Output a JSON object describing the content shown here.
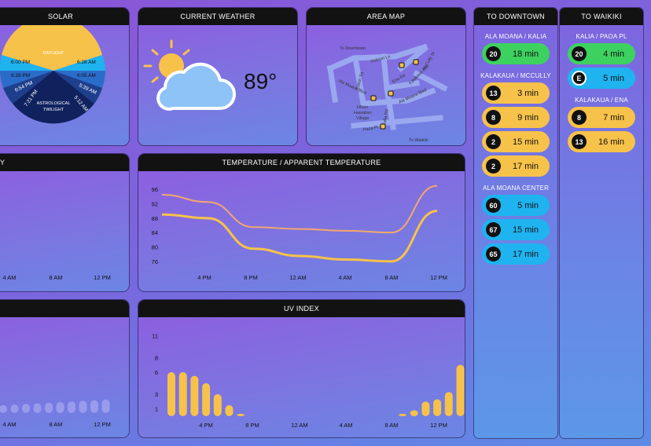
{
  "solar": {
    "title": "SOLAR",
    "daylight_label": "DAYLIGHT",
    "twilight_label_1": "ASTROLOGICAL",
    "twilight_label_2": "TWILIGHT",
    "left_times": [
      "6:00 PM",
      "6:28 PM",
      "6:54 PM",
      "7:21 PM"
    ],
    "right_times": [
      "6:28 AM",
      "6:05 AM",
      "5:39 AM",
      "5:12 AM"
    ]
  },
  "weather": {
    "title": "CURRENT WEATHER",
    "temperature": "89°",
    "icon": "partly-cloudy-icon"
  },
  "map": {
    "title": "AREA MAP",
    "labels": {
      "to_downtown": "To Downtown",
      "to_waikiki": "To Waikiki",
      "mccully": "McCully St",
      "hobron": "Hobron Ln",
      "eaton": "Eaton Sq",
      "ena": "Ena Rd",
      "kalakaua": "Kalakaua Ave",
      "ala_moana_blvd": "Ala Moana Blvd",
      "ala_moana_blvd_2": "Ala Moana Blvd",
      "kahanu": "Kalia Rd",
      "hilton_1": "Hilton",
      "hilton_2": "Hawaiian",
      "hilton_3": "Village",
      "paoa": "Paoa Pl"
    }
  },
  "humidity": {
    "title_partial": "Y",
    "x_ticks": [
      "4 AM",
      "8 AM",
      "12 PM"
    ]
  },
  "temperature_chart": {
    "title": "TEMPERATURE / APPARENT TEMPERATURE",
    "chart_data": {
      "type": "line",
      "x": [
        "~1 PM",
        "4 PM",
        "8 PM",
        "12 AM",
        "4 AM",
        "8 AM",
        "12 PM"
      ],
      "series": [
        {
          "values": [
            94.5,
            92.5,
            85.5,
            85,
            84.5,
            84,
            97
          ]
        },
        {
          "values": [
            89,
            88,
            79.5,
            77.5,
            76.5,
            76,
            90
          ]
        }
      ],
      "y_ticks": [
        96,
        92,
        88,
        84,
        80,
        76
      ],
      "x_ticks": [
        "4 PM",
        "8 PM",
        "12 AM",
        "4 AM",
        "8 AM",
        "12 PM"
      ],
      "ylim": [
        74,
        98
      ]
    }
  },
  "left_bottom": {
    "x_ticks": [
      "4 AM",
      "8 AM",
      "12 PM"
    ]
  },
  "uv_chart": {
    "title": "UV INDEX",
    "chart_data": {
      "type": "bar",
      "y_ticks": [
        11,
        8,
        6,
        3,
        1
      ],
      "x_ticks": [
        "4 PM",
        "8 PM",
        "12 AM",
        "4 AM",
        "8 AM",
        "12 PM"
      ],
      "values": [
        6,
        6,
        5.5,
        4.5,
        3,
        1.5,
        0.3,
        0,
        0,
        0,
        0,
        0,
        0,
        0,
        0,
        0,
        0,
        0,
        0,
        0,
        0.1,
        0.8,
        2,
        2.3,
        3.3,
        7
      ],
      "ylim": [
        0,
        12
      ]
    }
  },
  "to_downtown": {
    "title": "TO DOWNTOWN",
    "stops": [
      {
        "name": "ALA MOANA / KALIA",
        "routes": [
          {
            "badge": "20",
            "time": "18 min",
            "color": "#3dd15f"
          }
        ]
      },
      {
        "name": "KALAKAUA / MCCULLY",
        "routes": [
          {
            "badge": "13",
            "time": "3 min",
            "color": "#f7c24a"
          },
          {
            "badge": "8",
            "time": "9 min",
            "color": "#f7c24a"
          },
          {
            "badge": "2",
            "time": "15 min",
            "color": "#f7c24a"
          },
          {
            "badge": "2",
            "time": "17 min",
            "color": "#f7c24a"
          }
        ]
      },
      {
        "name": "ALA MOANA CENTER",
        "routes": [
          {
            "badge": "60",
            "time": "5 min",
            "color": "#1fb3f0"
          },
          {
            "badge": "67",
            "time": "15 min",
            "color": "#1fb3f0"
          },
          {
            "badge": "65",
            "time": "17 min",
            "color": "#1fb3f0"
          }
        ]
      }
    ]
  },
  "to_waikiki": {
    "title": "TO WAIKIKI",
    "stops": [
      {
        "name": "KALIA / PAOA PL",
        "routes": [
          {
            "badge": "20",
            "time": "4 min",
            "color": "#3dd15f"
          },
          {
            "badge": "E",
            "time": "5 min",
            "color": "#1fb3f0"
          }
        ]
      },
      {
        "name": "KALAKAUA / ENA",
        "routes": [
          {
            "badge": "8",
            "time": "7 min",
            "color": "#f7c24a"
          },
          {
            "badge": "13",
            "time": "16 min",
            "color": "#f7c24a"
          }
        ]
      }
    ]
  }
}
